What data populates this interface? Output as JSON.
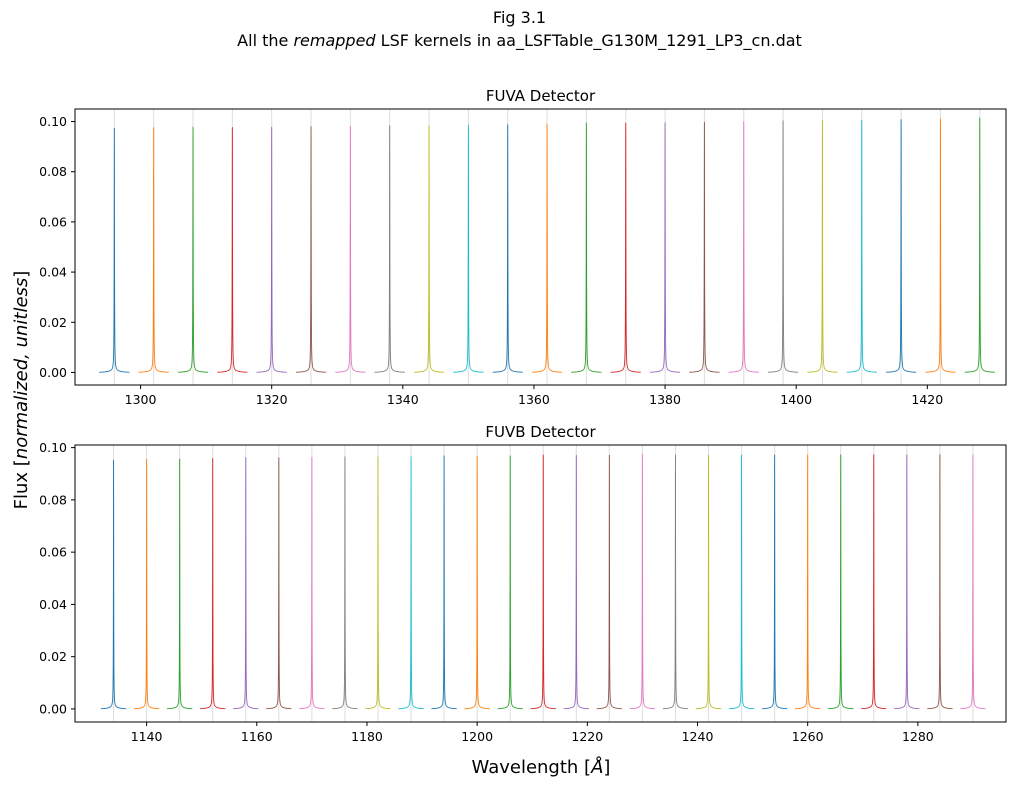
{
  "figure": {
    "title_line1": "Fig 3.1",
    "title_line2_pre": "All the ",
    "title_line2_em": "remapped",
    "title_line2_post": " LSF kernels in aa_LSFTable_G130M_1291_LP3_cn.dat",
    "ylabel_pre": "Flux [",
    "ylabel_em": "normalized, unitless",
    "ylabel_post": "]",
    "xlabel_pre": "Wavelength [",
    "xlabel_em": "Å",
    "xlabel_post": "]"
  },
  "colors": [
    "#1f77b4",
    "#ff7f0e",
    "#2ca02c",
    "#d62728",
    "#9467bd",
    "#8c564b",
    "#e377c2",
    "#7f7f7f",
    "#bcbd22",
    "#17becf"
  ],
  "chart_data": [
    {
      "type": "line",
      "title": "FUVA Detector",
      "xlim": [
        1290.0,
        1432.0
      ],
      "ylim": [
        -0.005,
        0.105
      ],
      "xticks": [
        1300,
        1320,
        1340,
        1360,
        1380,
        1400,
        1420
      ],
      "yticks": [
        0.0,
        0.02,
        0.04,
        0.06,
        0.08,
        0.1
      ],
      "kernel_halfwidth": 2.3,
      "centers": [
        1296,
        1302,
        1308,
        1314,
        1320,
        1326,
        1332,
        1338,
        1344,
        1350,
        1356,
        1362,
        1368,
        1374,
        1380,
        1386,
        1392,
        1398,
        1404,
        1410,
        1416,
        1422,
        1428
      ],
      "peaks": [
        0.0963,
        0.0964,
        0.0965,
        0.0966,
        0.0967,
        0.0969,
        0.097,
        0.0971,
        0.0973,
        0.0975,
        0.0977,
        0.0979,
        0.0981,
        0.0983,
        0.0985,
        0.0987,
        0.0989,
        0.0991,
        0.0993,
        0.0995,
        0.0997,
        0.0999,
        0.1002
      ]
    },
    {
      "type": "line",
      "title": "FUVB Detector",
      "xlim": [
        1127.0,
        1296.0
      ],
      "ylim": [
        -0.005,
        0.101
      ],
      "xticks": [
        1140,
        1160,
        1180,
        1200,
        1220,
        1240,
        1260,
        1280
      ],
      "yticks": [
        0.0,
        0.02,
        0.04,
        0.06,
        0.08,
        0.1
      ],
      "kernel_halfwidth": 2.3,
      "centers": [
        1134,
        1140,
        1146,
        1152,
        1158,
        1164,
        1170,
        1176,
        1182,
        1188,
        1194,
        1200,
        1206,
        1212,
        1218,
        1224,
        1230,
        1236,
        1242,
        1248,
        1254,
        1260,
        1266,
        1272,
        1278,
        1284,
        1290
      ],
      "peaks": [
        0.0942,
        0.0944,
        0.0946,
        0.0948,
        0.095,
        0.0951,
        0.0952,
        0.0953,
        0.0954,
        0.0955,
        0.0956,
        0.0957,
        0.0958,
        0.0959,
        0.096,
        0.096,
        0.0961,
        0.0961,
        0.0961,
        0.0961,
        0.0961,
        0.0962,
        0.0962,
        0.0962,
        0.0962,
        0.0962,
        0.0962
      ]
    }
  ]
}
